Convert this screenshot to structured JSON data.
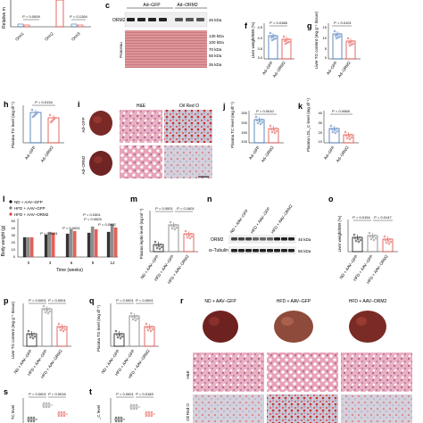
{
  "colors": {
    "gfp": "#3b6fb5",
    "orm2": "#e0463c",
    "grey": "#7a7a7a",
    "black": "#111111",
    "ponceau": "#d9898d",
    "liver": "#7a2a26",
    "he_tissue": "#e6a3b6",
    "oro_tissue": "#c8c2cf"
  },
  "panel_labels": [
    "c",
    "f",
    "g",
    "h",
    "i",
    "j",
    "k",
    "l",
    "m",
    "n",
    "o",
    "p",
    "q",
    "r",
    "s",
    "t"
  ],
  "top_left": {
    "ylabel": "Relative m",
    "categories": [
      "Orm1",
      "Orm2",
      "Orm3"
    ],
    "pvals": [
      "P = 0.0009",
      "P = 0.1264"
    ]
  },
  "panel_c": {
    "lanes": [
      "Ad–GFP",
      "Ad–ORM2"
    ],
    "orm2_label": "ORM2",
    "markers": [
      "45 kDa",
      "130 kDa",
      "100 kDa",
      "70 kDa",
      "55 kDa",
      "35 kDa"
    ],
    "side_label": "Ponceau"
  },
  "panel_f": {
    "ylabel": "Liver weight/BW (%)",
    "pval": "P = 0.0168",
    "ticks": [
      "4.5",
      "4.0",
      "3.5",
      "3.0"
    ],
    "x": [
      "Ad–GFP",
      "Ad–ORM2"
    ]
  },
  "panel_g": {
    "ylabel": "Liver TG content (mg g⁻¹ tissue)",
    "pval": "P = 0.0101",
    "ticks": [
      "15",
      "10",
      "5",
      "0"
    ],
    "x": [
      "Ad–GFP",
      "Ad–ORM2"
    ]
  },
  "panel_h": {
    "ylabel": "Plasma TG level (mg dl⁻¹)",
    "pval": "P = 0.0134",
    "x": [
      "Ad–GFP",
      "Ad–ORM2"
    ]
  },
  "panel_i": {
    "col_he": "H&E",
    "col_oro": "Oil Red O",
    "rows": [
      "Ad–GFP",
      "Ad–ORM2"
    ]
  },
  "panel_j": {
    "ylabel": "Plasma TC level (mg dl⁻¹)",
    "pval": "P = 0.0010",
    "ticks": [
      "250",
      "200",
      "150",
      "100"
    ],
    "x": [
      "Ad–GFP",
      "Ad–ORM2"
    ]
  },
  "panel_k": {
    "ylabel": "Plasma LDL_C level (mg dl⁻¹)",
    "pval": "P = 0.0068",
    "ticks": [
      "40",
      "30",
      "20",
      "10"
    ],
    "x": [
      "Ad–GFP",
      "Ad–ORM2"
    ]
  },
  "panel_l": {
    "legend": [
      "ND + AAV–GFP",
      "HFD + AAV–GFP",
      "HFD + AAV–ORM2"
    ],
    "ylabel": "Body weight (g)",
    "xlabel": "Time (weeks)",
    "xticks": [
      "0",
      "3",
      "6",
      "9",
      "12"
    ],
    "yticks": [
      "50",
      "40",
      "30",
      "20",
      "10",
      "0"
    ],
    "pvals": [
      "P = 0.0001",
      "P = 0.0001",
      "P = 0.0301",
      "P = 0.0003",
      "P = 0.0002"
    ]
  },
  "panel_m": {
    "ylabel": "Plasma leptin level (ng ml⁻¹)",
    "pvals": [
      "P = 0.0001",
      "P = 0.1601"
    ],
    "x": [
      "ND + AAV–GFP",
      "HFD + AAV–GFP",
      "HFD + AAV–ORM2"
    ]
  },
  "panel_n": {
    "lanes": [
      "ND + AAV–GFP",
      "HFD + AAV–GFP",
      "HFD + AAV–ORM2"
    ],
    "bands": [
      "ORM2",
      "α–Tubulin"
    ],
    "kda": [
      "45 kDa",
      "55 kDa"
    ]
  },
  "panel_o": {
    "ylabel": "Liver weight/BW (%)",
    "pvals": [
      "P = 0.0154",
      "P = 0.0147"
    ],
    "x": [
      "ND + AAV–GFP",
      "HFD + AAV–GFP",
      "HFD + AAV–ORM2"
    ]
  },
  "panel_p": {
    "ylabel": "Liver TG content (mg g⁻¹ tissue)",
    "pvals": [
      "P = 0.0001",
      "P = 0.0001"
    ],
    "x": [
      "ND + AAV–GFP",
      "HFD + AAV–GFP",
      "HFD + AAV–ORM2"
    ]
  },
  "panel_q": {
    "ylabel": "Plasma TG level (mg dl⁻¹)",
    "pvals": [
      "P = 0.0001",
      "P = 0.0001"
    ],
    "x": [
      "ND + AAV–GFP",
      "HFD + AAV–GFP",
      "HFD + AAV–ORM2"
    ]
  },
  "panel_r": {
    "cols": [
      "ND + AAV–GFP",
      "HFD + AAV–GFP",
      "HFD + AAV–ORM2"
    ],
    "rows": [
      "H&E",
      "Oil Red O"
    ]
  },
  "panel_s": {
    "ylabel": "TC level",
    "pvals": [
      "P = 0.0001",
      "P = 0.0016"
    ]
  },
  "panel_t": {
    "ylabel": "_C level",
    "pvals": [
      "P = 0.0001",
      "P = 0.0183"
    ]
  }
}
